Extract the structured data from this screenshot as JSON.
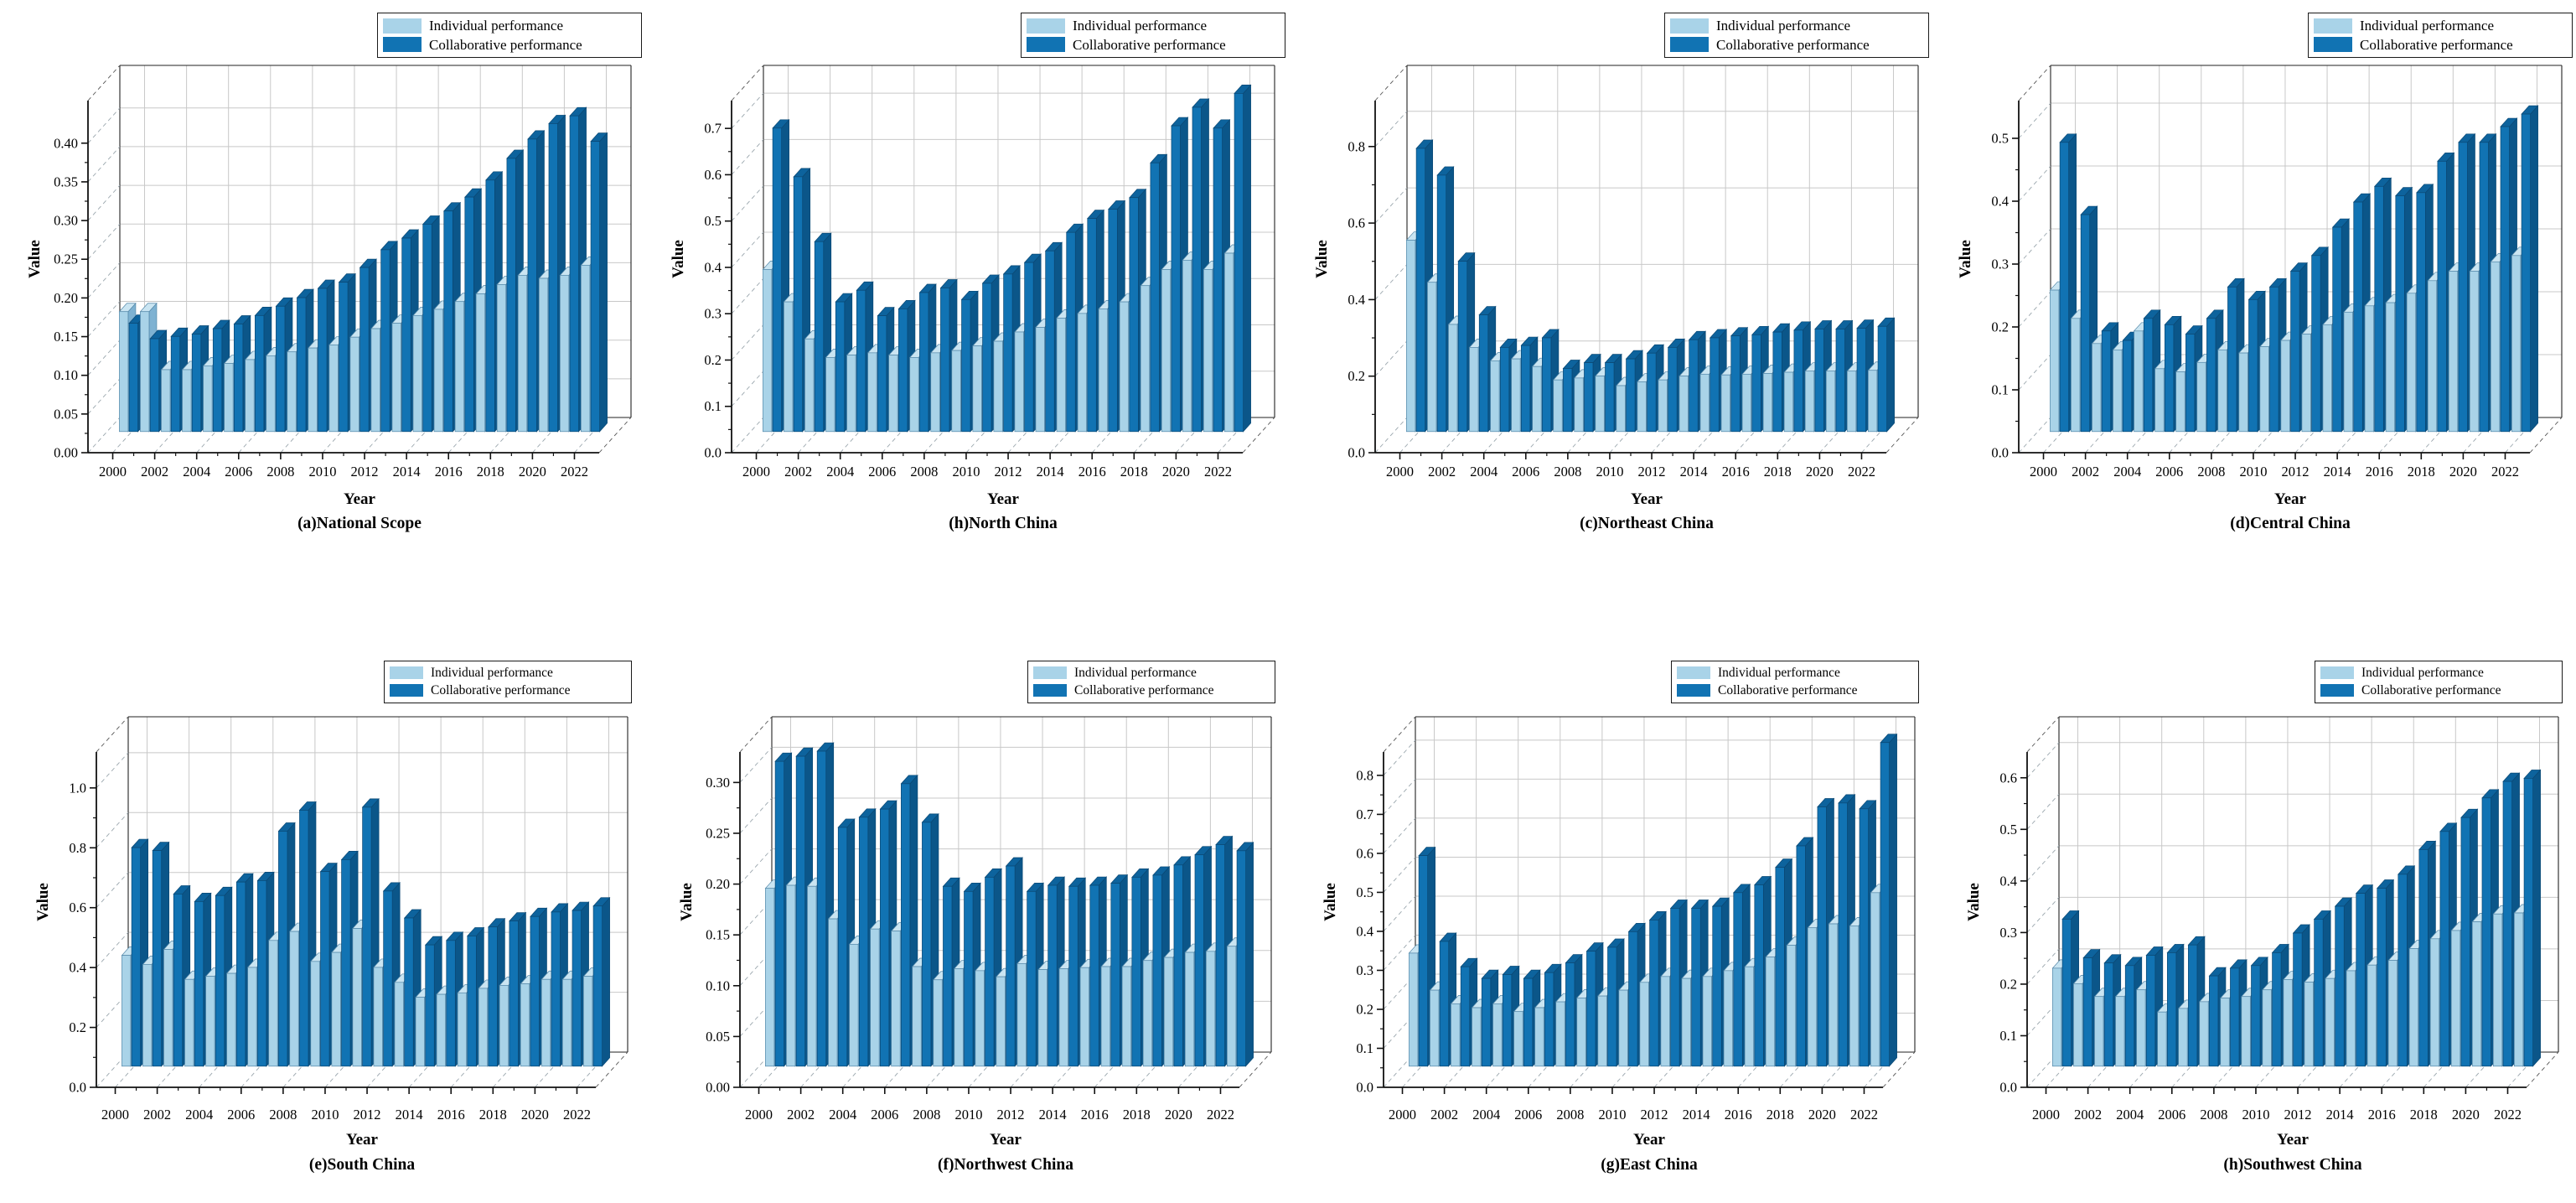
{
  "legend": {
    "items": [
      {
        "label": "Individual performance",
        "color": "#A9D3E8"
      },
      {
        "label": "Collaborative performance",
        "color": "#1173B3"
      }
    ]
  },
  "axis_defaults": {
    "xlabel": "Year",
    "ylabel": "Value"
  },
  "chart_data": [
    {
      "type": "bar",
      "caption": "(a)National Scope",
      "xlabel": "Year",
      "ylabel": "Value",
      "categories": [
        2000,
        2001,
        2002,
        2003,
        2004,
        2005,
        2006,
        2007,
        2008,
        2009,
        2010,
        2011,
        2012,
        2013,
        2014,
        2015,
        2016,
        2017,
        2018,
        2019,
        2020,
        2021,
        2022
      ],
      "yticks": [
        0,
        0.05,
        0.1,
        0.15,
        0.2,
        0.25,
        0.3,
        0.35,
        0.4
      ],
      "ytick_decimals": 2,
      "ylim": [
        0,
        0.455
      ],
      "grid": true,
      "legend_position": "top-right",
      "series": [
        {
          "name": "Individual performance",
          "values": [
            0.155,
            0.155,
            0.08,
            0.08,
            0.085,
            0.088,
            0.093,
            0.098,
            0.103,
            0.108,
            0.112,
            0.122,
            0.133,
            0.14,
            0.15,
            0.158,
            0.168,
            0.178,
            0.19,
            0.202,
            0.198,
            0.202,
            0.215
          ]
        },
        {
          "name": "Collaborative performance",
          "values": [
            0.14,
            0.12,
            0.123,
            0.126,
            0.133,
            0.139,
            0.15,
            0.162,
            0.173,
            0.185,
            0.193,
            0.212,
            0.235,
            0.25,
            0.268,
            0.285,
            0.303,
            0.325,
            0.353,
            0.378,
            0.398,
            0.408,
            0.375
          ]
        }
      ]
    },
    {
      "type": "bar",
      "caption": "(h)North China",
      "xlabel": "Year",
      "ylabel": "Value",
      "categories": [
        2000,
        2001,
        2002,
        2003,
        2004,
        2005,
        2006,
        2007,
        2008,
        2009,
        2010,
        2011,
        2012,
        2013,
        2014,
        2015,
        2016,
        2017,
        2018,
        2019,
        2020,
        2021,
        2022
      ],
      "yticks": [
        0,
        0.1,
        0.2,
        0.3,
        0.4,
        0.5,
        0.6,
        0.7
      ],
      "ytick_decimals": 1,
      "ylim": [
        0,
        0.76
      ],
      "grid": true,
      "legend_position": "top-right",
      "series": [
        {
          "name": "Individual performance",
          "values": [
            0.35,
            0.28,
            0.2,
            0.16,
            0.165,
            0.17,
            0.165,
            0.16,
            0.17,
            0.175,
            0.185,
            0.195,
            0.215,
            0.225,
            0.245,
            0.255,
            0.265,
            0.28,
            0.315,
            0.35,
            0.37,
            0.35,
            0.385
          ]
        },
        {
          "name": "Collaborative performance",
          "values": [
            0.655,
            0.55,
            0.41,
            0.28,
            0.305,
            0.25,
            0.265,
            0.3,
            0.31,
            0.285,
            0.32,
            0.34,
            0.365,
            0.39,
            0.43,
            0.46,
            0.48,
            0.505,
            0.58,
            0.66,
            0.7,
            0.655,
            0.73
          ]
        }
      ]
    },
    {
      "type": "bar",
      "caption": "(c)Northeast China",
      "xlabel": "Year",
      "ylabel": "Value",
      "categories": [
        2000,
        2001,
        2002,
        2003,
        2004,
        2005,
        2006,
        2007,
        2008,
        2009,
        2010,
        2011,
        2012,
        2013,
        2014,
        2015,
        2016,
        2017,
        2018,
        2019,
        2020,
        2021,
        2022
      ],
      "yticks": [
        0,
        0.2,
        0.4,
        0.6,
        0.8
      ],
      "ytick_decimals": 1,
      "ylim": [
        0,
        0.92
      ],
      "grid": true,
      "legend_position": "top-right",
      "series": [
        {
          "name": "Individual performance",
          "values": [
            0.5,
            0.39,
            0.28,
            0.22,
            0.185,
            0.19,
            0.17,
            0.135,
            0.14,
            0.145,
            0.12,
            0.13,
            0.135,
            0.145,
            0.15,
            0.148,
            0.15,
            0.152,
            0.155,
            0.158,
            0.158,
            0.158,
            0.16
          ]
        },
        {
          "name": "Collaborative performance",
          "values": [
            0.74,
            0.67,
            0.445,
            0.305,
            0.22,
            0.225,
            0.245,
            0.165,
            0.18,
            0.18,
            0.19,
            0.205,
            0.22,
            0.24,
            0.245,
            0.25,
            0.253,
            0.26,
            0.265,
            0.268,
            0.268,
            0.27,
            0.275
          ]
        }
      ]
    },
    {
      "type": "bar",
      "caption": "(d)Central China",
      "xlabel": "Year",
      "ylabel": "Value",
      "categories": [
        2000,
        2001,
        2002,
        2003,
        2004,
        2005,
        2006,
        2007,
        2008,
        2009,
        2010,
        2011,
        2012,
        2013,
        2014,
        2015,
        2016,
        2017,
        2018,
        2019,
        2020,
        2021,
        2022
      ],
      "yticks": [
        0,
        0.1,
        0.2,
        0.3,
        0.4,
        0.5
      ],
      "ytick_decimals": 1,
      "ylim": [
        0,
        0.56
      ],
      "grid": true,
      "legend_position": "top-right",
      "series": [
        {
          "name": "Individual performance",
          "values": [
            0.225,
            0.18,
            0.14,
            0.13,
            0.16,
            0.1,
            0.095,
            0.11,
            0.13,
            0.125,
            0.135,
            0.145,
            0.155,
            0.17,
            0.19,
            0.2,
            0.205,
            0.22,
            0.24,
            0.255,
            0.255,
            0.27,
            0.28
          ]
        },
        {
          "name": "Collaborative performance",
          "values": [
            0.46,
            0.345,
            0.16,
            0.145,
            0.18,
            0.17,
            0.155,
            0.18,
            0.23,
            0.21,
            0.23,
            0.255,
            0.28,
            0.325,
            0.365,
            0.39,
            0.375,
            0.38,
            0.43,
            0.46,
            0.46,
            0.485,
            0.505
          ]
        }
      ]
    },
    {
      "type": "bar",
      "caption": "(e)South China",
      "xlabel": "Year",
      "ylabel": "Value",
      "categories": [
        2000,
        2001,
        2002,
        2003,
        2004,
        2005,
        2006,
        2007,
        2008,
        2009,
        2010,
        2011,
        2012,
        2013,
        2014,
        2015,
        2016,
        2017,
        2018,
        2019,
        2020,
        2021,
        2022
      ],
      "yticks": [
        0,
        0.2,
        0.4,
        0.6,
        0.8,
        1.0
      ],
      "ytick_decimals": 1,
      "ylim": [
        0,
        1.12
      ],
      "grid": true,
      "legend_position": "top-right",
      "series": [
        {
          "name": "Individual performance",
          "values": [
            0.37,
            0.34,
            0.39,
            0.29,
            0.3,
            0.31,
            0.33,
            0.42,
            0.45,
            0.35,
            0.38,
            0.46,
            0.33,
            0.28,
            0.23,
            0.24,
            0.245,
            0.26,
            0.27,
            0.275,
            0.29,
            0.29,
            0.3
          ]
        },
        {
          "name": "Collaborative performance",
          "values": [
            0.73,
            0.72,
            0.575,
            0.55,
            0.57,
            0.615,
            0.62,
            0.785,
            0.855,
            0.65,
            0.69,
            0.865,
            0.585,
            0.495,
            0.405,
            0.42,
            0.435,
            0.465,
            0.485,
            0.5,
            0.515,
            0.52,
            0.535
          ]
        }
      ]
    },
    {
      "type": "bar",
      "caption": "(f)Northwest China",
      "xlabel": "Year",
      "ylabel": "Value",
      "categories": [
        2000,
        2001,
        2002,
        2003,
        2004,
        2005,
        2006,
        2007,
        2008,
        2009,
        2010,
        2011,
        2012,
        2013,
        2014,
        2015,
        2016,
        2017,
        2018,
        2019,
        2020,
        2021,
        2022
      ],
      "yticks": [
        0,
        0.05,
        0.1,
        0.15,
        0.2,
        0.25,
        0.3
      ],
      "ytick_decimals": 2,
      "ylim": [
        0,
        0.33
      ],
      "grid": true,
      "legend_position": "top-right",
      "series": [
        {
          "name": "Individual performance",
          "values": [
            0.175,
            0.178,
            0.177,
            0.145,
            0.12,
            0.135,
            0.133,
            0.098,
            0.085,
            0.096,
            0.094,
            0.088,
            0.101,
            0.095,
            0.096,
            0.097,
            0.098,
            0.098,
            0.104,
            0.107,
            0.112,
            0.113,
            0.118
          ]
        },
        {
          "name": "Collaborative performance",
          "values": [
            0.3,
            0.305,
            0.31,
            0.235,
            0.245,
            0.253,
            0.278,
            0.24,
            0.177,
            0.172,
            0.186,
            0.197,
            0.172,
            0.178,
            0.177,
            0.178,
            0.18,
            0.186,
            0.188,
            0.198,
            0.208,
            0.218,
            0.212
          ]
        }
      ]
    },
    {
      "type": "bar",
      "caption": "(g)East China",
      "xlabel": "Year",
      "ylabel": "Value",
      "categories": [
        2000,
        2001,
        2002,
        2003,
        2004,
        2005,
        2006,
        2007,
        2008,
        2009,
        2010,
        2011,
        2012,
        2013,
        2014,
        2015,
        2016,
        2017,
        2018,
        2019,
        2020,
        2021,
        2022
      ],
      "yticks": [
        0,
        0.1,
        0.2,
        0.3,
        0.4,
        0.5,
        0.6,
        0.7,
        0.8
      ],
      "ytick_decimals": 1,
      "ylim": [
        0,
        0.86
      ],
      "grid": true,
      "legend_position": "top-right",
      "series": [
        {
          "name": "Individual performance",
          "values": [
            0.29,
            0.195,
            0.16,
            0.15,
            0.16,
            0.14,
            0.15,
            0.165,
            0.175,
            0.18,
            0.195,
            0.215,
            0.23,
            0.225,
            0.23,
            0.245,
            0.255,
            0.28,
            0.31,
            0.355,
            0.365,
            0.36,
            0.445
          ]
        },
        {
          "name": "Collaborative performance",
          "values": [
            0.54,
            0.32,
            0.255,
            0.225,
            0.235,
            0.225,
            0.24,
            0.265,
            0.295,
            0.305,
            0.345,
            0.375,
            0.405,
            0.405,
            0.41,
            0.445,
            0.465,
            0.51,
            0.565,
            0.665,
            0.675,
            0.66,
            0.83
          ]
        }
      ]
    },
    {
      "type": "bar",
      "caption": "(h)Southwest China",
      "xlabel": "Year",
      "ylabel": "Value",
      "categories": [
        2000,
        2001,
        2002,
        2003,
        2004,
        2005,
        2006,
        2007,
        2008,
        2009,
        2010,
        2011,
        2012,
        2013,
        2014,
        2015,
        2016,
        2017,
        2018,
        2019,
        2020,
        2021,
        2022
      ],
      "yticks": [
        0,
        0.1,
        0.2,
        0.3,
        0.4,
        0.5,
        0.6
      ],
      "ytick_decimals": 1,
      "ylim": [
        0,
        0.65
      ],
      "grid": true,
      "legend_position": "top-right",
      "series": [
        {
          "name": "Individual performance",
          "values": [
            0.19,
            0.16,
            0.135,
            0.135,
            0.148,
            0.105,
            0.112,
            0.125,
            0.132,
            0.135,
            0.148,
            0.168,
            0.163,
            0.17,
            0.185,
            0.196,
            0.205,
            0.228,
            0.247,
            0.263,
            0.28,
            0.295,
            0.297
          ]
        },
        {
          "name": "Collaborative performance",
          "values": [
            0.285,
            0.21,
            0.2,
            0.195,
            0.215,
            0.22,
            0.235,
            0.175,
            0.19,
            0.195,
            0.22,
            0.258,
            0.285,
            0.31,
            0.335,
            0.345,
            0.372,
            0.42,
            0.455,
            0.482,
            0.52,
            0.552,
            0.558
          ]
        }
      ]
    }
  ]
}
